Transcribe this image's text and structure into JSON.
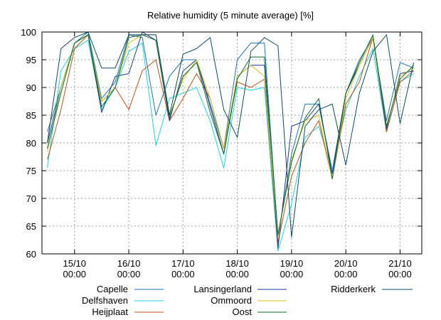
{
  "chart_data": {
    "type": "line",
    "title": "Relative humidity (5 minute average) [%]",
    "xlabel": "",
    "ylabel": "",
    "ylim": [
      60,
      100
    ],
    "yticks": [
      60,
      65,
      70,
      75,
      80,
      85,
      90,
      95,
      100
    ],
    "xlim": [
      -0.6,
      6.4
    ],
    "xticks": [
      {
        "at": 0,
        "line1": "15/10",
        "line2": "00:00"
      },
      {
        "at": 1,
        "line1": "16/10",
        "line2": "00:00"
      },
      {
        "at": 2,
        "line1": "17/10",
        "line2": "00:00"
      },
      {
        "at": 3,
        "line1": "18/10",
        "line2": "00:00"
      },
      {
        "at": 4,
        "line1": "19/10",
        "line2": "00:00"
      },
      {
        "at": 5,
        "line1": "20/10",
        "line2": "00:00"
      },
      {
        "at": 6,
        "line1": "21/10",
        "line2": "00:00"
      }
    ],
    "grid": true,
    "legend_position": "bottom",
    "x": [
      -0.5,
      -0.25,
      0,
      0.25,
      0.5,
      0.75,
      1,
      1.25,
      1.5,
      1.75,
      2,
      2.25,
      2.5,
      2.75,
      3,
      3.25,
      3.5,
      3.75,
      4,
      4.25,
      4.5,
      4.75,
      5,
      5.25,
      5.5,
      5.75,
      6,
      6.25
    ],
    "series": [
      {
        "name": "Capelle",
        "color": "#1f77b4",
        "values": [
          82,
          90,
          98,
          100,
          88,
          91,
          99.5,
          99,
          85,
          92,
          95,
          95,
          87,
          79,
          95,
          98,
          98,
          63,
          78,
          87,
          87,
          75,
          89,
          95,
          99,
          84,
          94.5,
          93.5
        ]
      },
      {
        "name": "Delfshaven",
        "color": "#17d4e6",
        "values": [
          75.5,
          93,
          97,
          98.5,
          86,
          90,
          96.5,
          98,
          79.5,
          88,
          89,
          90,
          84,
          75.5,
          90,
          89.5,
          90,
          60.5,
          69,
          81,
          83,
          75,
          86,
          92,
          97,
          82,
          91,
          92.5
        ]
      },
      {
        "name": "Heijplaat",
        "color": "#c0501a",
        "values": [
          77,
          86,
          97,
          99.5,
          87.5,
          90,
          86,
          93,
          95,
          84,
          88,
          92.5,
          88,
          79,
          91,
          90,
          91.5,
          62,
          74,
          80,
          84,
          73.5,
          87,
          91,
          99,
          82,
          91,
          93
        ]
      },
      {
        "name": "Lansingerland",
        "color": "#1a3a9c",
        "values": [
          80,
          90,
          98,
          99.5,
          85.5,
          92,
          92.5,
          100,
          98.5,
          84,
          93,
          95,
          86.5,
          78,
          92,
          94,
          94,
          61,
          83,
          84,
          87,
          74.5,
          89,
          94,
          99,
          82.5,
          92.5,
          93
        ]
      },
      {
        "name": "Ommoord",
        "color": "#d4c21a",
        "values": [
          78.5,
          90,
          98,
          99.5,
          87.5,
          90,
          98,
          99.5,
          99.5,
          85,
          91.5,
          95,
          88,
          79,
          92,
          94,
          92,
          63,
          77,
          84,
          85,
          73.5,
          88,
          94,
          99,
          83,
          92,
          93.5
        ]
      },
      {
        "name": "Oost",
        "color": "#0b6e2a",
        "values": [
          79,
          89,
          98,
          99.5,
          86.5,
          90,
          99,
          99.5,
          98.5,
          84.5,
          92,
          94.5,
          85.5,
          78,
          91.5,
          95.5,
          95.5,
          63.5,
          76.5,
          84.5,
          88,
          73.5,
          89,
          94.5,
          99.5,
          83,
          91.5,
          94
        ]
      },
      {
        "name": "Ridderkerk",
        "color": "#0d4a63",
        "values": [
          80,
          97,
          99,
          100,
          93.5,
          93.5,
          99.5,
          99.5,
          99.5,
          85,
          96,
          97,
          99,
          86,
          81,
          96.5,
          99,
          97.5,
          63,
          83,
          86,
          87,
          76,
          89,
          96.5,
          99.5,
          83.5,
          94.5
        ]
      }
    ]
  }
}
